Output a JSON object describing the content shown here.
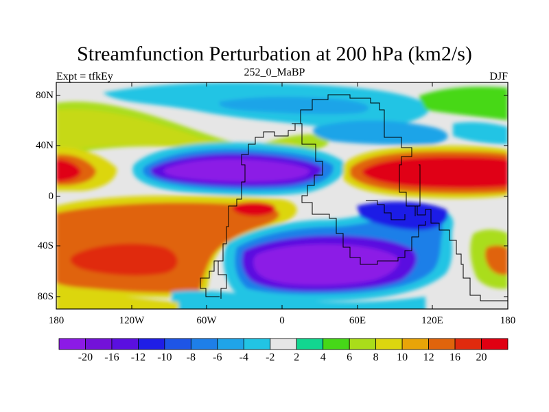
{
  "title": "Streamfunction Perturbation at 200 hPa (km2/s)",
  "left_string": "Expt = tfkEy",
  "center_string": "252_0_MaBP",
  "right_string": "DJF",
  "map": {
    "lat_ticks": [
      "80N",
      "40N",
      "0",
      "40S",
      "80S"
    ],
    "lon_ticks": [
      "180",
      "120W",
      "60W",
      "0",
      "60E",
      "120E",
      "180"
    ]
  },
  "colorbar": {
    "labels": [
      "-20",
      "-16",
      "-12",
      "-10",
      "-8",
      "-6",
      "-4",
      "-2",
      "2",
      "4",
      "6",
      "8",
      "10",
      "12",
      "16",
      "20"
    ],
    "colors": [
      "#8c1ae6",
      "#7312d9",
      "#5a0fe0",
      "#1f1ee6",
      "#1e55e6",
      "#1e7fe8",
      "#1fa4e8",
      "#22c4e4",
      "#e6e6e6",
      "#12d690",
      "#46d818",
      "#aadd1a",
      "#dcd60f",
      "#e8a408",
      "#e0640c",
      "#e02a0e",
      "#e00012"
    ]
  }
}
